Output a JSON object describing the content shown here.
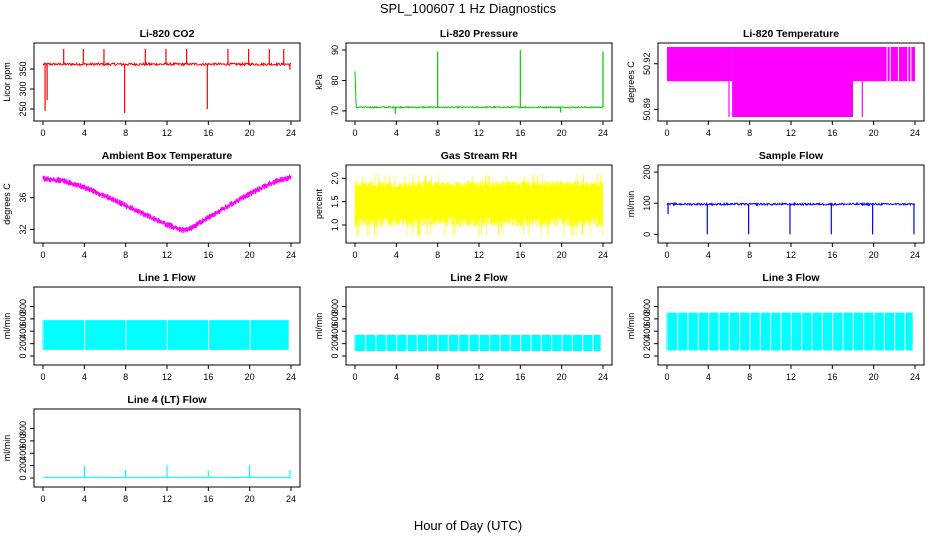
{
  "figure": {
    "title": "SPL_100607  1 Hz Diagnostics",
    "xlabel": "Hour of Day (UTC)"
  },
  "chart_data": [
    {
      "type": "line",
      "title": "Li-820 CO2",
      "ylabel": "Licor ppm",
      "color": "#ff0000",
      "xlim": [
        0,
        24
      ],
      "xticks": [
        0,
        4,
        8,
        12,
        16,
        20,
        24
      ],
      "ylim": [
        230,
        405
      ],
      "yticks": [
        250,
        300,
        350
      ],
      "ytick_labels": [
        "250",
        "300",
        "350"
      ],
      "baseline": 362,
      "noise": 6,
      "spikes": [
        {
          "x": 0.2,
          "y": 245
        },
        {
          "x": 0.4,
          "y": 272
        },
        {
          "x": 2.0,
          "y": 400
        },
        {
          "x": 3.9,
          "y": 400
        },
        {
          "x": 5.9,
          "y": 400
        },
        {
          "x": 7.9,
          "y": 240
        },
        {
          "x": 9.9,
          "y": 400
        },
        {
          "x": 11.9,
          "y": 400
        },
        {
          "x": 13.9,
          "y": 400
        },
        {
          "x": 15.9,
          "y": 250
        },
        {
          "x": 17.9,
          "y": 400
        },
        {
          "x": 19.9,
          "y": 400
        },
        {
          "x": 21.9,
          "y": 400
        },
        {
          "x": 23.3,
          "y": 400
        },
        {
          "x": 23.9,
          "y": 348
        }
      ]
    },
    {
      "type": "line",
      "title": "Li-820 Pressure",
      "ylabel": "kPa",
      "color": "#00cc00",
      "xlim": [
        0,
        24
      ],
      "xticks": [
        0,
        4,
        8,
        12,
        16,
        20,
        24
      ],
      "ylim": [
        68,
        91
      ],
      "yticks": [
        70,
        80,
        90
      ],
      "ytick_labels": [
        "70",
        "80",
        "90"
      ],
      "baseline": 71.2,
      "noise": 0.4,
      "start": [
        {
          "x": 0,
          "y": 83
        },
        {
          "x": 0.1,
          "y": 73
        }
      ],
      "spikes": [
        {
          "x": 3.9,
          "y": 69
        },
        {
          "x": 8.0,
          "y": 89.5
        },
        {
          "x": 16.0,
          "y": 90
        },
        {
          "x": 19.9,
          "y": 69.5
        },
        {
          "x": 24.0,
          "y": 89.5
        }
      ]
    },
    {
      "type": "area",
      "title": "Li-820 Temperature",
      "ylabel": "degrees C",
      "color": "#ff00ff",
      "xlim": [
        0,
        24
      ],
      "xticks": [
        0,
        4,
        8,
        12,
        16,
        20,
        24
      ],
      "ylim": [
        50.885,
        50.931
      ],
      "yticks": [
        50.89,
        50.92
      ],
      "ytick_labels": [
        "50.89",
        "50.92"
      ],
      "levels": [
        50.885,
        50.9085,
        50.931
      ],
      "segments": [
        {
          "x0": 0.0,
          "x1": 6.3,
          "ylow": 50.9085,
          "yhigh": 50.931
        },
        {
          "x0": 6.3,
          "x1": 18.0,
          "ylow": 50.885,
          "yhigh": 50.931
        },
        {
          "x0": 18.0,
          "x1": 21.0,
          "ylow": 50.9085,
          "yhigh": 50.931
        },
        {
          "x0": 21.0,
          "x1": 24.0,
          "ylow": 50.9085,
          "yhigh": 50.931
        }
      ]
    },
    {
      "type": "line",
      "title": "Ambient Box Temperature",
      "ylabel": "degrees C",
      "color": "#ff00ff",
      "xlim": [
        0,
        24
      ],
      "xticks": [
        0,
        4,
        8,
        12,
        16,
        20,
        24
      ],
      "ylim": [
        30.8,
        39.6
      ],
      "yticks": [
        32,
        36
      ],
      "ytick_labels": [
        "32",
        "36"
      ],
      "curve_x": [
        0,
        2,
        4,
        6,
        8,
        10,
        12,
        13.5,
        14,
        16,
        18,
        20,
        22,
        24
      ],
      "curve_y": [
        38.4,
        38.1,
        37.3,
        36.2,
        35.0,
        33.8,
        32.6,
        31.9,
        31.9,
        33.5,
        35.0,
        36.5,
        37.8,
        38.6
      ],
      "noise": 0.4
    },
    {
      "type": "line",
      "title": "Gas Stream RH",
      "ylabel": "percent",
      "color": "#ffff00",
      "xlim": [
        0,
        24
      ],
      "xticks": [
        0,
        4,
        8,
        12,
        16,
        20,
        24
      ],
      "ylim": [
        0.7,
        2.2
      ],
      "yticks": [
        1.0,
        1.5,
        2.0
      ],
      "ytick_labels": [
        "1.0",
        "1.5",
        "2.0"
      ],
      "band_low": 0.95,
      "band_high": 1.95,
      "min": 0.75,
      "max": 2.1
    },
    {
      "type": "line",
      "title": "Sample Flow",
      "ylabel": "ml/min",
      "color": "#0000ff",
      "xlim": [
        0,
        24
      ],
      "xticks": [
        0,
        4,
        8,
        12,
        16,
        20,
        24
      ],
      "ylim": [
        -15,
        210
      ],
      "yticks": [
        0,
        100,
        200
      ],
      "ytick_labels": [
        "0",
        "100",
        "200"
      ],
      "baseline": 97,
      "noise": 6,
      "spikes": [
        {
          "x": 0.1,
          "y": 65
        },
        {
          "x": 3.9,
          "y": 0
        },
        {
          "x": 7.9,
          "y": 0
        },
        {
          "x": 11.9,
          "y": 0
        },
        {
          "x": 15.9,
          "y": 0
        },
        {
          "x": 19.9,
          "y": 0
        },
        {
          "x": 23.9,
          "y": 0
        }
      ]
    },
    {
      "type": "area",
      "title": "Line 1 Flow",
      "ylabel": "ml/min",
      "color": "#00ffff",
      "xlim": [
        0,
        24
      ],
      "xticks": [
        0,
        4,
        8,
        12,
        16,
        20,
        24
      ],
      "ylim": [
        -80,
        1050
      ],
      "yticks": [
        0,
        200,
        400,
        600,
        800
      ],
      "ytick_labels": [
        "0",
        "200",
        "400",
        "600",
        "800"
      ],
      "band_low": 100,
      "band_high": 580,
      "gaps": [
        4.0,
        8.0,
        12.0,
        16.0,
        20.0
      ],
      "end_x": 23.8
    },
    {
      "type": "area",
      "title": "Line 2 Flow",
      "ylabel": "ml/min",
      "color": "#00ffff",
      "xlim": [
        0,
        24
      ],
      "xticks": [
        0,
        4,
        8,
        12,
        16,
        20,
        24
      ],
      "ylim": [
        -80,
        1050
      ],
      "yticks": [
        0,
        200,
        400,
        600,
        800
      ],
      "ytick_labels": [
        "0",
        "200",
        "400",
        "600",
        "800"
      ],
      "band_low": 80,
      "band_high": 340,
      "gaps": [
        1.0,
        2.0,
        3.0,
        4.0,
        5.0,
        6.0,
        7.0,
        8.0,
        9.0,
        10.0,
        11.0,
        12.0,
        13.0,
        14.0,
        15.0,
        16.0,
        17.0,
        18.0,
        19.0,
        20.0,
        21.0,
        22.0,
        23.0
      ],
      "end_x": 23.8
    },
    {
      "type": "area",
      "title": "Line 3 Flow",
      "ylabel": "ml/min",
      "color": "#00ffff",
      "xlim": [
        0,
        24
      ],
      "xticks": [
        0,
        4,
        8,
        12,
        16,
        20,
        24
      ],
      "ylim": [
        -80,
        1050
      ],
      "yticks": [
        0,
        200,
        400,
        600,
        800
      ],
      "ytick_labels": [
        "0",
        "200",
        "400",
        "600",
        "800"
      ],
      "band_low": 90,
      "band_high": 700,
      "gaps": [
        1.0,
        2.0,
        3.0,
        4.0,
        5.0,
        6.0,
        7.0,
        8.0,
        9.0,
        10.0,
        11.0,
        12.0,
        13.0,
        14.0,
        15.0,
        16.0,
        17.0,
        18.0,
        19.0,
        20.0,
        21.0,
        22.0,
        23.0
      ],
      "end_x": 23.8
    },
    {
      "type": "line",
      "title": "Line 4 (LT) Flow",
      "ylabel": "ml/min",
      "color": "#00ffff",
      "xlim": [
        0,
        24
      ],
      "xticks": [
        0,
        4,
        8,
        12,
        16,
        20,
        24
      ],
      "ylim": [
        -80,
        1050
      ],
      "yticks": [
        0,
        200,
        400,
        600,
        800
      ],
      "ytick_labels": [
        "0",
        "200",
        "400",
        "600",
        "800"
      ],
      "baseline": 10,
      "noise": 4,
      "spikes": [
        {
          "x": 4.0,
          "y": 200
        },
        {
          "x": 8.0,
          "y": 130
        },
        {
          "x": 12.0,
          "y": 210
        },
        {
          "x": 16.0,
          "y": 120
        },
        {
          "x": 20.0,
          "y": 210
        },
        {
          "x": 23.9,
          "y": 130
        }
      ]
    }
  ]
}
